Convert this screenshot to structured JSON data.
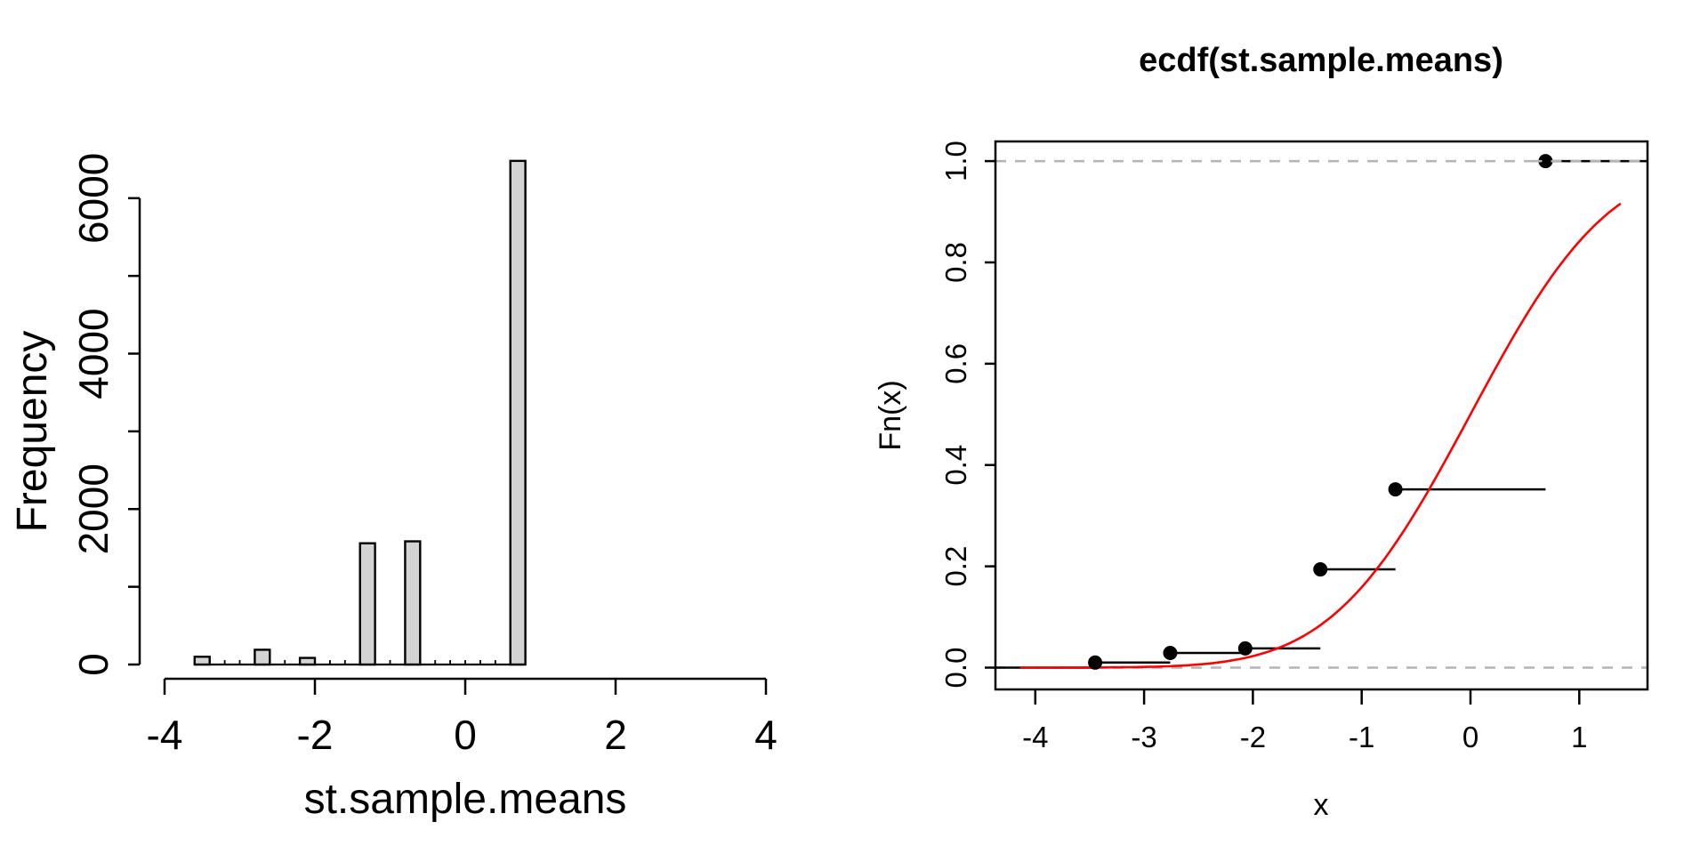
{
  "figure": {
    "background": "#ffffff",
    "description_left": "R histogram of st.sample.means",
    "description_right": "R empirical CDF of st.sample.means with standard normal CDF overlay"
  },
  "chart_data": [
    {
      "type": "bar",
      "subtype": "histogram",
      "title": "",
      "xlabel": "st.sample.means",
      "ylabel": "Frequency",
      "x_ticks": [
        -4,
        -2,
        0,
        2,
        4
      ],
      "y_ticks": [
        0,
        1000,
        2000,
        3000,
        4000,
        5000,
        6000
      ],
      "y_labeled_ticks": [
        0,
        2000,
        4000,
        6000
      ],
      "xlim": [
        -4,
        4
      ],
      "ylim": [
        0,
        6000
      ],
      "grid": "off",
      "bin_width": 0.2,
      "bars": [
        {
          "center": -3.5,
          "count": 100
        },
        {
          "center": -2.7,
          "count": 190
        },
        {
          "center": -2.1,
          "count": 85
        },
        {
          "center": -1.3,
          "count": 1560
        },
        {
          "center": -0.7,
          "count": 1585
        },
        {
          "center": 0.7,
          "count": 6480
        }
      ],
      "baseline": {
        "from": -3.6,
        "to": 0.8,
        "break_step": 0.2
      },
      "bar_fill": "#d3d3d3",
      "bar_stroke": "#000000"
    },
    {
      "type": "line",
      "subtype": "ecdf-step-with-points",
      "title": "ecdf(st.sample.means)",
      "xlabel": "x",
      "ylabel": "Fn(x)",
      "x_ticks": [
        -4,
        -3,
        -2,
        -1,
        0,
        1
      ],
      "y_ticks": [
        0.0,
        0.2,
        0.4,
        0.6,
        0.8,
        1.0
      ],
      "xlim_usr": [
        -4.36,
        1.6
      ],
      "ylim_usr": [
        -0.04,
        1.04
      ],
      "grid": "off",
      "legend": "none",
      "points": [
        {
          "x": -3.45,
          "fn": 0.01
        },
        {
          "x": -2.76,
          "fn": 0.029
        },
        {
          "x": -2.07,
          "fn": 0.038
        },
        {
          "x": -1.38,
          "fn": 0.194
        },
        {
          "x": -0.69,
          "fn": 0.352
        },
        {
          "x": 0.69,
          "fn": 1.0
        }
      ],
      "pre_step_level": 0.0,
      "reference_lines": {
        "y": [
          0.0,
          1.0
        ],
        "color": "#b4b4b4",
        "style": "dashed"
      },
      "overlay_curve": {
        "name": "standard-normal-cdf",
        "from": -4.14,
        "to": 1.38,
        "color": "#ff0000"
      },
      "point_color": "#000000",
      "step_color": "#000000"
    }
  ]
}
